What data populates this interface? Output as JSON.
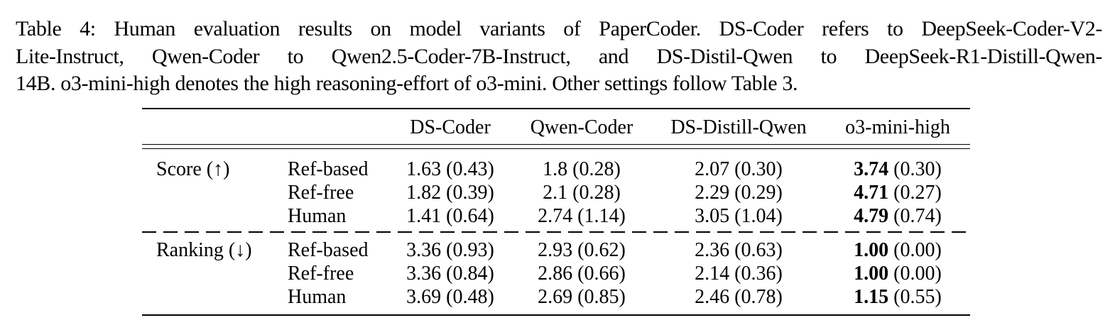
{
  "caption": {
    "line1": "Table 4: Human evaluation results on model variants of PaperCoder. DS-Coder refers to DeepSeek-Coder-V2-",
    "line2": "Lite-Instruct, Qwen-Coder to Qwen2.5-Coder-7B-Instruct, and DS-Distil-Qwen to DeepSeek-R1-Distill-Qwen-",
    "line3": "14B. o3-mini-high denotes the high reasoning-effort of o3-mini. Other settings follow Table  3."
  },
  "table": {
    "columns": [
      "DS-Coder",
      "Qwen-Coder",
      "DS-Distill-Qwen",
      "o3-mini-high"
    ],
    "groups": [
      {
        "label": "Score (↑)",
        "rows": [
          {
            "label": "Ref-based",
            "cells": [
              "1.63 (0.43)",
              "1.8 (0.28)",
              "2.07 (0.30)"
            ],
            "best_value": "3.74",
            "best_std": " (0.30)"
          },
          {
            "label": "Ref-free",
            "cells": [
              "1.82 (0.39)",
              "2.1 (0.28)",
              "2.29 (0.29)"
            ],
            "best_value": "4.71",
            "best_std": " (0.27)"
          },
          {
            "label": "Human",
            "cells": [
              "1.41 (0.64)",
              "2.74 (1.14)",
              "3.05 (1.04)"
            ],
            "best_value": "4.79",
            "best_std": " (0.74)"
          }
        ]
      },
      {
        "label": "Ranking (↓)",
        "rows": [
          {
            "label": "Ref-based",
            "cells": [
              "3.36 (0.93)",
              "2.93 (0.62)",
              "2.36 (0.63)"
            ],
            "best_value": "1.00",
            "best_std": " (0.00)"
          },
          {
            "label": "Ref-free",
            "cells": [
              "3.36 (0.84)",
              "2.86 (0.66)",
              "2.14 (0.36)"
            ],
            "best_value": "1.00",
            "best_std": " (0.00)"
          },
          {
            "label": "Human",
            "cells": [
              "3.69 (0.48)",
              "2.69 (0.85)",
              "2.46 (0.78)"
            ],
            "best_value": "1.15",
            "best_std": " (0.55)"
          }
        ]
      }
    ]
  }
}
